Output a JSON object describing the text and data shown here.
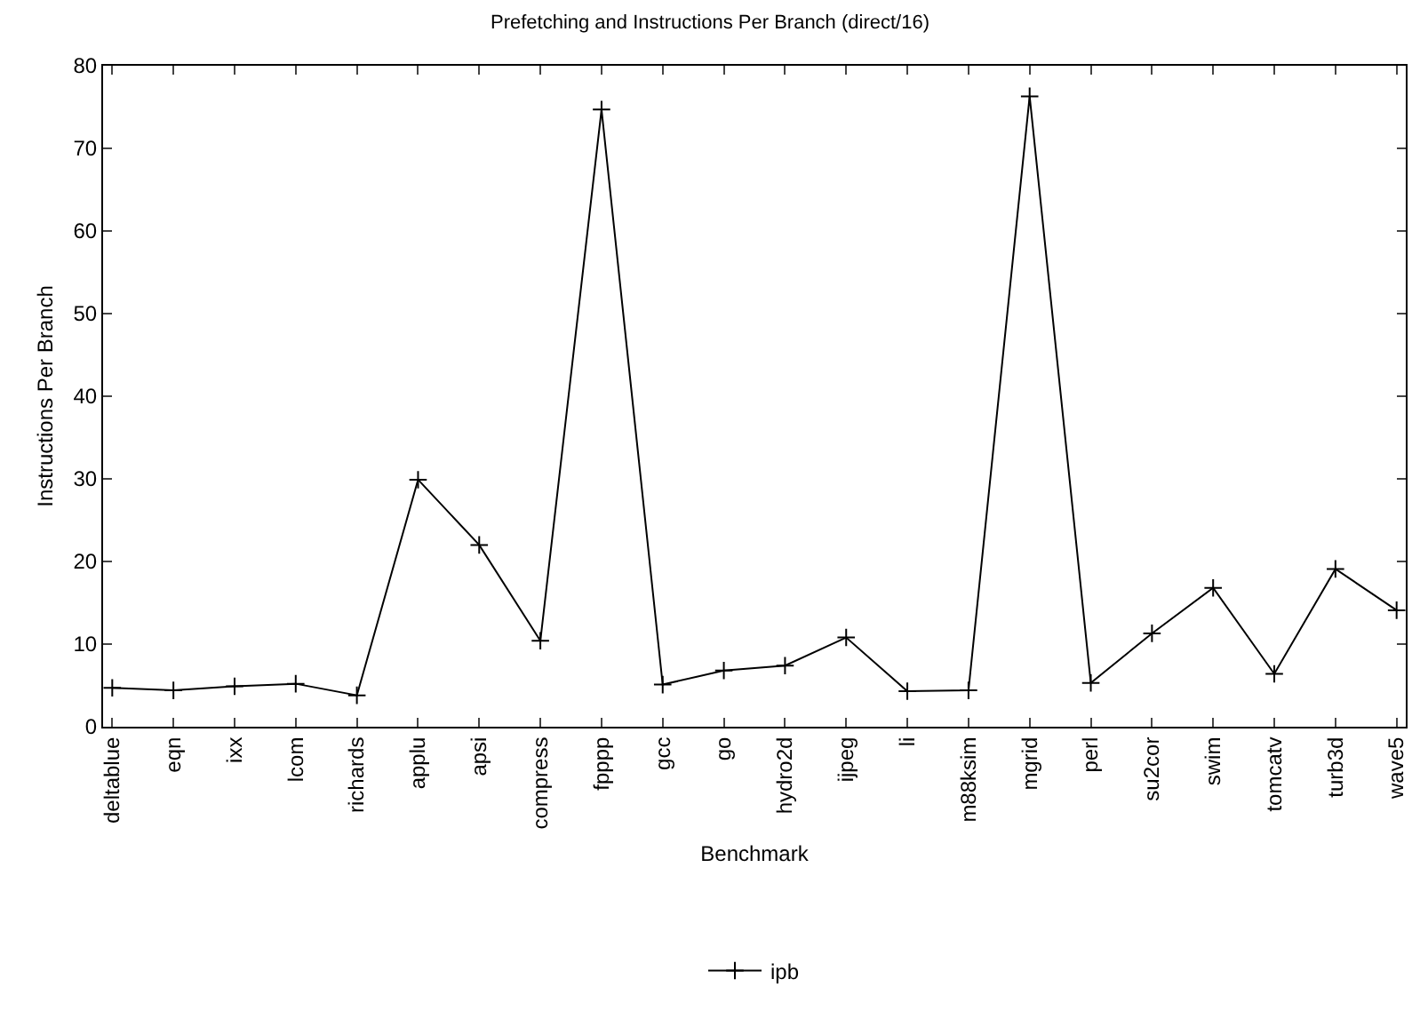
{
  "chart_data": {
    "type": "line",
    "title": "Prefetching and Instructions Per Branch (direct/16)",
    "xlabel": "Benchmark",
    "ylabel": "Instructions Per Branch",
    "categories": [
      "deltablue",
      "eqn",
      "ixx",
      "lcom",
      "richards",
      "applu",
      "apsi",
      "compress",
      "fpppp",
      "gcc",
      "go",
      "hydro2d",
      "ijpeg",
      "li",
      "m88ksim",
      "mgrid",
      "perl",
      "su2cor",
      "swim",
      "tomcatv",
      "turb3d",
      "wave5"
    ],
    "series": [
      {
        "name": "ipb",
        "color": "#000000",
        "values": [
          4.7,
          4.4,
          4.9,
          5.2,
          3.8,
          29.9,
          22.0,
          10.4,
          74.7,
          5.1,
          6.8,
          7.4,
          10.8,
          4.3,
          4.4,
          76.3,
          5.3,
          11.3,
          16.8,
          6.4,
          19.1,
          14.1
        ]
      }
    ],
    "ylim": [
      0,
      80
    ],
    "yticks": [
      0,
      10,
      20,
      30,
      40,
      50,
      60,
      70,
      80
    ],
    "grid": false,
    "legend": "bottom",
    "marker": "cross",
    "line_style": "solid"
  }
}
